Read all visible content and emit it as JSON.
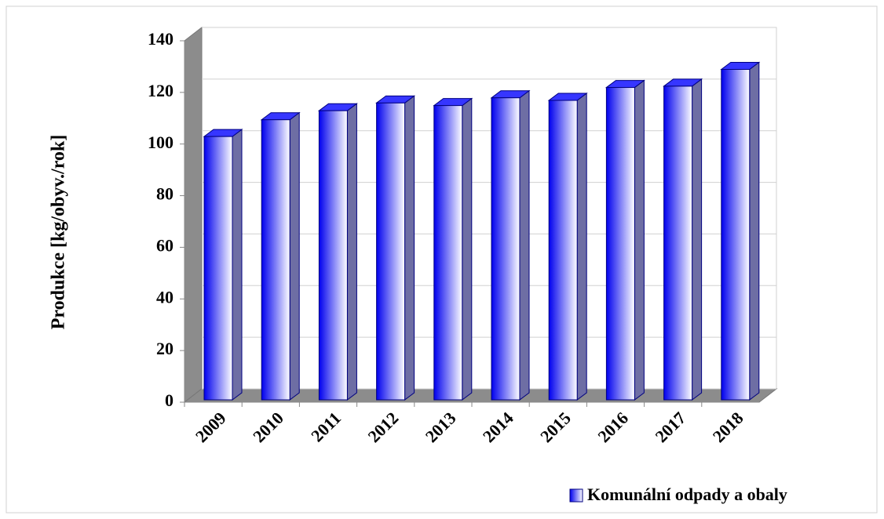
{
  "chart_data": {
    "type": "bar",
    "y_label": "Produkce [kg/obyv./rok]",
    "categories": [
      "2009",
      "2010",
      "2011",
      "2012",
      "2013",
      "2014",
      "2015",
      "2016",
      "2017",
      "2018"
    ],
    "series": [
      {
        "name": "Komunální odpady a obaly",
        "color": "#0000ee",
        "values": [
          102,
          108.5,
          112,
          115,
          114,
          117,
          116,
          121,
          121.5,
          128
        ]
      }
    ],
    "ylim": [
      0,
      140
    ],
    "yticks": [
      0,
      20,
      40,
      60,
      80,
      100,
      120,
      140
    ],
    "grid": true
  }
}
